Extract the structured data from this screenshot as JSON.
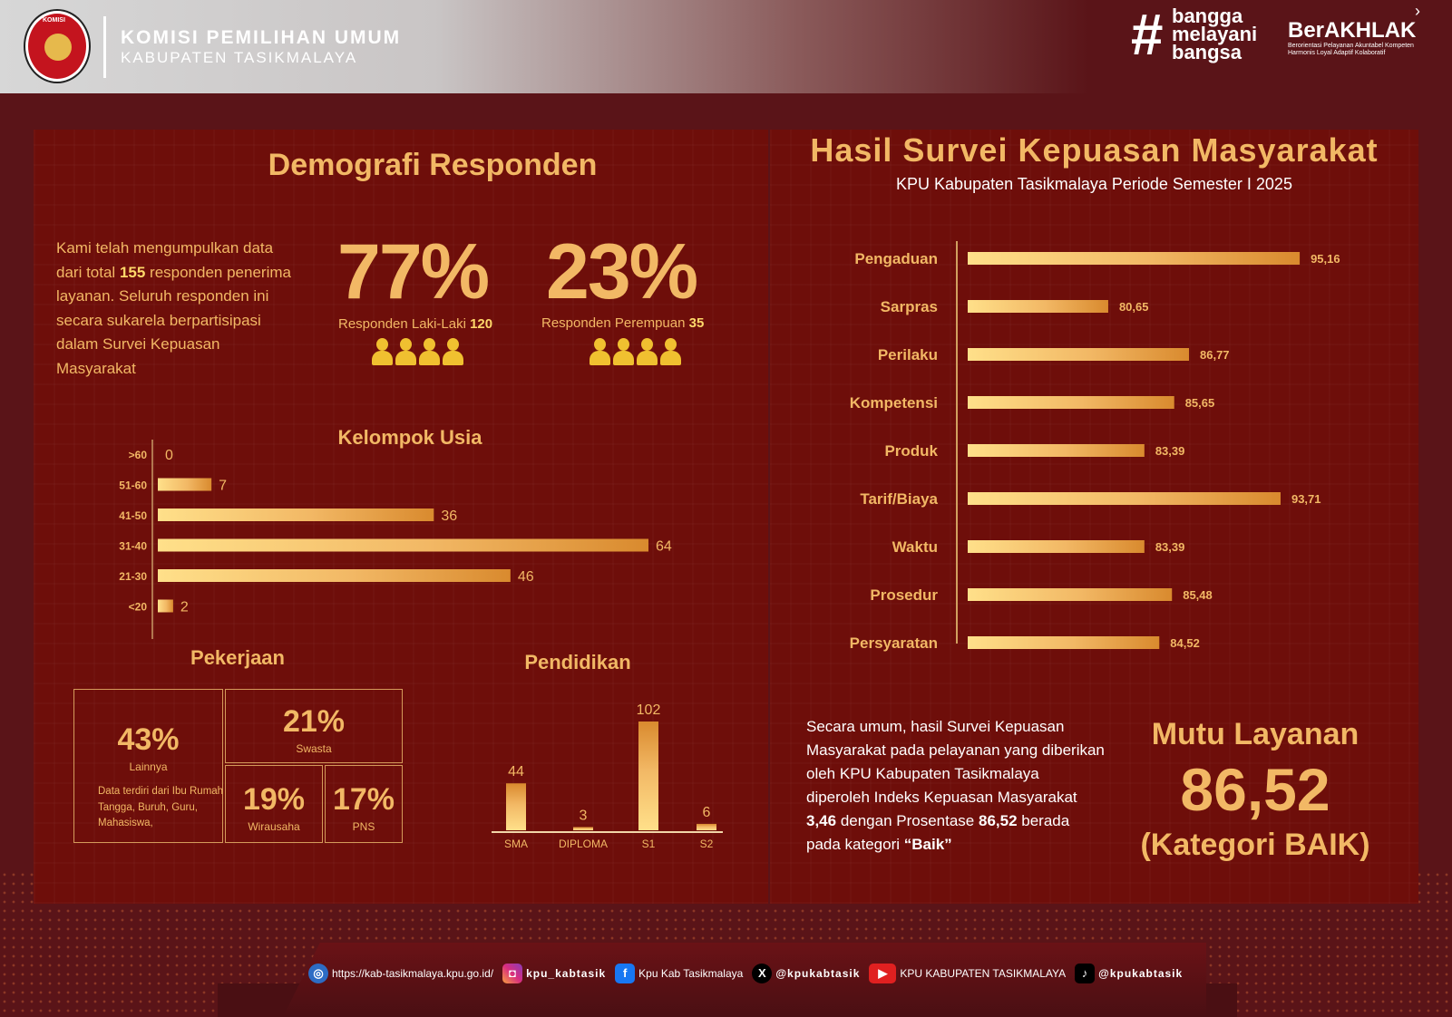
{
  "header": {
    "logo_text": "KOMISI",
    "org": "KOMISI PEMILIHAN UMUM",
    "sub": "KABUPATEN TASIKMALAYA",
    "bangga_hash": "#",
    "bangga_lines": [
      "bangga",
      "melayani",
      "bangsa"
    ],
    "berakhlak": "BerAKHLAK",
    "berakhlak_sub": "Berorientasi Pelayanan Akuntabel Kompeten Harmonis Loyal Adaptif Kolaboratif"
  },
  "left": {
    "title": "Demografi Responden",
    "intro_pre": "Kami telah mengumpulkan data dari total ",
    "intro_count": "155",
    "intro_post": " responden penerima layanan. Seluruh responden ini secara sukarela berpartisipasi dalam Survei Kepuasan Masyarakat",
    "male_pct": "77%",
    "male_label": "Responden Laki-Laki ",
    "male_count": "120",
    "female_pct": "23%",
    "female_label": "Responden Perempuan ",
    "female_count": "35",
    "occupation_title": "Pekerjaan",
    "occupation": {
      "lainnya_pct": "43%",
      "lainnya_label": "Lainnya",
      "lainnya_note": "Data terdiri dari Ibu Rumah Tangga, Buruh, Guru, Mahasiswa,",
      "swasta_pct": "21%",
      "swasta_label": "Swasta",
      "wirausaha_pct": "19%",
      "wirausaha_label": "Wirausaha",
      "pns_pct": "17%",
      "pns_label": "PNS"
    }
  },
  "right": {
    "title": "Hasil Survei Kepuasan Masyarakat",
    "subtitle": "KPU Kabupaten Tasikmalaya Periode Semester I 2025",
    "summary_pre": "Secara umum, hasil Survei Kepuasan Masyarakat pada pelayanan yang diberikan oleh KPU Kabupaten Tasikmalaya diperoleh Indeks Kepuasan Masyarakat ",
    "summary_idx": "3,46",
    "summary_mid": " dengan Prosentase ",
    "summary_pct": "86,52",
    "summary_mid2": " berada pada kategori ",
    "summary_cat": "“Baik”",
    "mutu_title": "Mutu Layanan",
    "mutu_value": "86,52",
    "mutu_category": "(Kategori BAIK)"
  },
  "footer": {
    "website": "https://kab-tasikmalaya.kpu.go.id/",
    "instagram": "kpu_kabtasik",
    "facebook": "Kpu Kab Tasikmalaya",
    "x": "@kpukabtasik",
    "youtube": "KPU KABUPATEN TASIKMALAYA",
    "tiktok": "@kpukabtasik"
  },
  "colors": {
    "gold": "#f2b865",
    "panel": "#6e0e0a",
    "background": "#5a1418"
  },
  "chart_data": [
    {
      "type": "bar",
      "orientation": "horizontal",
      "title": "Kelompok Usia",
      "categories": [
        ">60",
        "51-60",
        "41-50",
        "31-40",
        "21-30",
        "<20"
      ],
      "values": [
        0,
        7,
        36,
        64,
        46,
        2
      ],
      "value_labels": [
        "0",
        "7",
        "36",
        "64",
        "46",
        "2"
      ]
    },
    {
      "type": "bar",
      "orientation": "vertical",
      "title": "Pendidikan",
      "categories": [
        "SMA",
        "DIPLOMA",
        "S1",
        "S2"
      ],
      "values": [
        44,
        3,
        102,
        6
      ],
      "value_labels": [
        "44",
        "3",
        "102",
        "6"
      ]
    },
    {
      "type": "bar",
      "orientation": "horizontal",
      "title": "",
      "categories": [
        "Pengaduan",
        "Sarpras",
        "Perilaku",
        "Kompetensi",
        "Produk",
        "Tarif/Biaya",
        "Waktu",
        "Prosedur",
        "Persyaratan"
      ],
      "values": [
        95.16,
        80.65,
        86.77,
        85.65,
        83.39,
        93.71,
        83.39,
        85.48,
        84.52
      ],
      "value_labels": [
        "95,16",
        "80,65",
        "86,77",
        "85,65",
        "83,39",
        "93,71",
        "83,39",
        "85,48",
        "84,52"
      ]
    }
  ]
}
